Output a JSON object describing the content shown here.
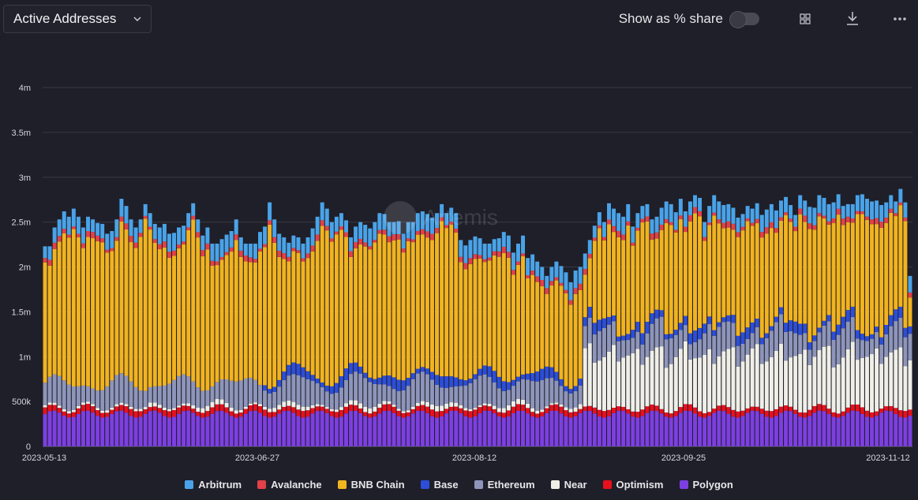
{
  "header": {
    "metric_label": "Active Addresses",
    "toggle_label": "Show as % share",
    "toggle_on": false
  },
  "icons": {
    "dropdown": "chevron-down-icon",
    "toggle": "toggle-switch",
    "table": "grid-icon",
    "download": "download-icon",
    "more": "more-icon"
  },
  "watermark": "Artemis",
  "chart_data": {
    "type": "bar",
    "stacked": true,
    "y_ticks": [
      "0",
      "500k",
      "1m",
      "1.5m",
      "2m",
      "2.5m",
      "3m",
      "3.5m",
      "4m"
    ],
    "ylim": [
      0,
      4000000
    ],
    "x_ticks": [
      "2023-05-13",
      "2023-06-27",
      "2023-08-12",
      "2023-09-25",
      "2023-11-12"
    ],
    "x_range": [
      "2023-05-13",
      "2023-11-15"
    ],
    "grid": true,
    "legend_position": "bottom",
    "series": [
      {
        "name": "Polygon",
        "color": "#7d3fe1"
      },
      {
        "name": "Optimism",
        "color": "#e8101d"
      },
      {
        "name": "Near",
        "color": "#efefe8"
      },
      {
        "name": "Ethereum",
        "color": "#8e95ba"
      },
      {
        "name": "Base",
        "color": "#2c4ed8"
      },
      {
        "name": "BNB Chain",
        "color": "#f1b31f"
      },
      {
        "name": "Avalanche",
        "color": "#e14147"
      },
      {
        "name": "Arbitrum",
        "color": "#4aa3e8"
      }
    ],
    "legend_order": [
      "Arbitrum",
      "Avalanche",
      "BNB Chain",
      "Base",
      "Ethereum",
      "Near",
      "Optimism",
      "Polygon"
    ],
    "totals_k": [
      2230,
      2230,
      2440,
      2530,
      2620,
      2560,
      2650,
      2560,
      2440,
      2560,
      2530,
      2490,
      2480,
      2370,
      2400,
      2530,
      2760,
      2680,
      2530,
      2440,
      2530,
      2700,
      2600,
      2480,
      2440,
      2480,
      2370,
      2380,
      2440,
      2460,
      2600,
      2710,
      2530,
      2350,
      2440,
      2260,
      2260,
      2310,
      2360,
      2400,
      2530,
      2330,
      2260,
      2260,
      2260,
      2390,
      2450,
      2720,
      2530,
      2370,
      2330,
      2270,
      2350,
      2330,
      2260,
      2330,
      2430,
      2560,
      2720,
      2650,
      2500,
      2560,
      2600,
      2520,
      2330,
      2450,
      2500,
      2470,
      2430,
      2500,
      2600,
      2590,
      2500,
      2500,
      2510,
      2370,
      2500,
      2500,
      2600,
      2620,
      2590,
      2550,
      2600,
      2700,
      2600,
      2660,
      2600,
      2300,
      2240,
      2300,
      2340,
      2320,
      2260,
      2260,
      2310,
      2320,
      2390,
      2350,
      2160,
      2260,
      2350,
      2100,
      2140,
      2060,
      2000,
      1900,
      2000,
      2060,
      2010,
      1940,
      1830,
      1960,
      2000,
      2150,
      2300,
      2460,
      2610,
      2500,
      2710,
      2650,
      2600,
      2560,
      2700,
      2450,
      2600,
      2680,
      2700,
      2530,
      2560,
      2660,
      2730,
      2700,
      2610,
      2760,
      2620,
      2730,
      2800,
      2770,
      2500,
      2680,
      2800,
      2730,
      2690,
      2700,
      2660,
      2550,
      2590,
      2680,
      2650,
      2710,
      2580,
      2640,
      2700,
      2630,
      2740,
      2780,
      2690,
      2580,
      2800,
      2740,
      2670,
      2660,
      2800,
      2770,
      2700,
      2720,
      2810,
      2680,
      2700,
      2700,
      2800,
      2810,
      2760,
      2730,
      2740,
      2690,
      2720,
      2800,
      2730,
      2870,
      2720,
      1900
    ]
  }
}
